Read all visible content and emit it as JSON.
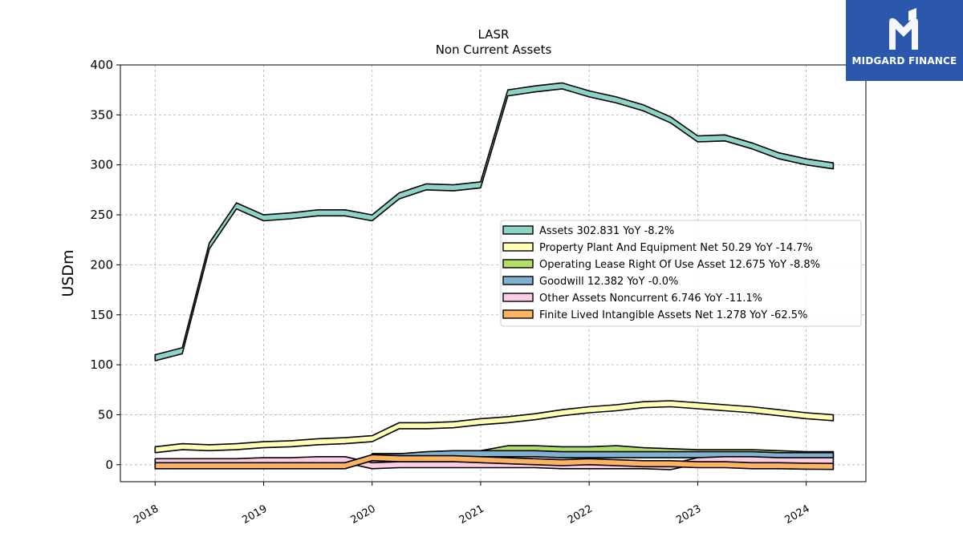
{
  "brand": {
    "name": "MIDGARD FINANCE",
    "bg": "#2b58ac"
  },
  "chart_data": {
    "type": "area",
    "title": "LASR",
    "subtitle": "Non Current  Assets",
    "ylabel": "USDm",
    "xlabel": "",
    "ylim": [
      -17,
      400
    ],
    "xlim": [
      2017.68,
      2024.55
    ],
    "yticks": [
      0,
      50,
      100,
      150,
      200,
      250,
      300,
      350,
      400
    ],
    "xticks": [
      "2018",
      "2019",
      "2020",
      "2021",
      "2022",
      "2023",
      "2024"
    ],
    "grid": true,
    "legend_position": "center-right",
    "x": [
      2018.0,
      2018.25,
      2018.5,
      2018.75,
      2019.0,
      2019.25,
      2019.5,
      2019.75,
      2020.0,
      2020.25,
      2020.5,
      2020.75,
      2021.0,
      2021.25,
      2021.5,
      2021.75,
      2022.0,
      2022.25,
      2022.5,
      2022.75,
      2023.0,
      2023.25,
      2023.5,
      2023.75,
      2024.0,
      2024.25
    ],
    "series": [
      {
        "name": "Assets",
        "label": "Assets  302.831 YoY -8.2%",
        "color": "#8dd3c7",
        "values": [
          110,
          117,
          222,
          262,
          250,
          252,
          255,
          255,
          250,
          272,
          281,
          280,
          283,
          375,
          379,
          382,
          374,
          368,
          360,
          348,
          329,
          330,
          322,
          312,
          306,
          302
        ]
      },
      {
        "name": "Property Plant And Equipment Net",
        "label": "Property Plant And Equipment Net  50.29 YoY -14.7%",
        "color": "#ffffb3",
        "values": [
          18,
          21,
          20,
          21,
          23,
          24,
          26,
          27,
          29,
          42,
          42,
          43,
          46,
          48,
          51,
          55,
          58,
          60,
          63,
          64,
          62,
          60,
          58,
          55,
          52,
          50
        ]
      },
      {
        "name": "Operating Lease Right Of Use Asset",
        "label": "Operating Lease Right Of Use Asset  12.675 YoY -8.8%",
        "color": "#b3de69",
        "values": [
          null,
          null,
          null,
          null,
          null,
          null,
          null,
          null,
          11,
          11,
          12,
          13,
          14,
          19,
          19,
          18,
          18,
          19,
          17,
          16,
          15,
          15,
          15,
          14,
          13,
          13
        ]
      },
      {
        "name": "Goodwill",
        "label": "Goodwill  12.382 YoY -0.0%",
        "color": "#80b1d3",
        "values": [
          null,
          null,
          null,
          null,
          null,
          null,
          null,
          null,
          11,
          11,
          13,
          14,
          14,
          14,
          14,
          13,
          13,
          13,
          13,
          13,
          13,
          13,
          13,
          12,
          12,
          12
        ]
      },
      {
        "name": "Other Assets Noncurrent",
        "label": "Other Assets Noncurrent  6.746 YoY -11.1%",
        "color": "#fccde5",
        "values": [
          6,
          6,
          6,
          6,
          7,
          7,
          8,
          8,
          2,
          3,
          3,
          3,
          3,
          3,
          3,
          2,
          2,
          2,
          2,
          1,
          7,
          8,
          8,
          7,
          7,
          7
        ]
      },
      {
        "name": "Finite Lived Intangible Assets Net",
        "label": "Finite Lived Intangible Assets Net  1.278 YoY -62.5%",
        "color": "#fdb462",
        "values": [
          2,
          2,
          2,
          2,
          2,
          2,
          2,
          2,
          10,
          9,
          9,
          9,
          8,
          7,
          6,
          5,
          6,
          5,
          4,
          4,
          3,
          3,
          2,
          2,
          1.5,
          1.3
        ]
      }
    ]
  }
}
